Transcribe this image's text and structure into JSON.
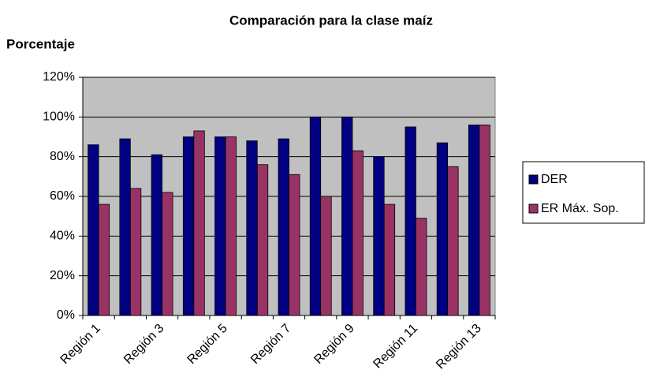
{
  "chart_data": {
    "type": "bar",
    "title": "Comparación para la clase maíz",
    "y_label": "Porcentaje",
    "categories": [
      "Región 1",
      null,
      "Región 3",
      null,
      "Región 5",
      null,
      "Región 7",
      null,
      "Región 9",
      null,
      "Región 11",
      null,
      "Región 13"
    ],
    "series": [
      {
        "name": "DER",
        "color": "#000080",
        "values": [
          86,
          89,
          81,
          90,
          90,
          88,
          89,
          100,
          100,
          80,
          95,
          87,
          96
        ]
      },
      {
        "name": "ER Máx. Sop.",
        "color": "#993366",
        "values": [
          56,
          64,
          62,
          93,
          90,
          76,
          71,
          60,
          83,
          56,
          49,
          75,
          96
        ]
      }
    ],
    "ylim": [
      0,
      120
    ],
    "yticks": [
      {
        "value": 0,
        "label": "0%"
      },
      {
        "value": 20,
        "label": "20%"
      },
      {
        "value": 40,
        "label": "40%"
      },
      {
        "value": 60,
        "label": "60%"
      },
      {
        "value": 80,
        "label": "80%"
      },
      {
        "value": 100,
        "label": "100%"
      },
      {
        "value": 120,
        "label": "120%"
      }
    ],
    "grid": true,
    "legend": "right",
    "plot_background": "#c0c0c0"
  }
}
